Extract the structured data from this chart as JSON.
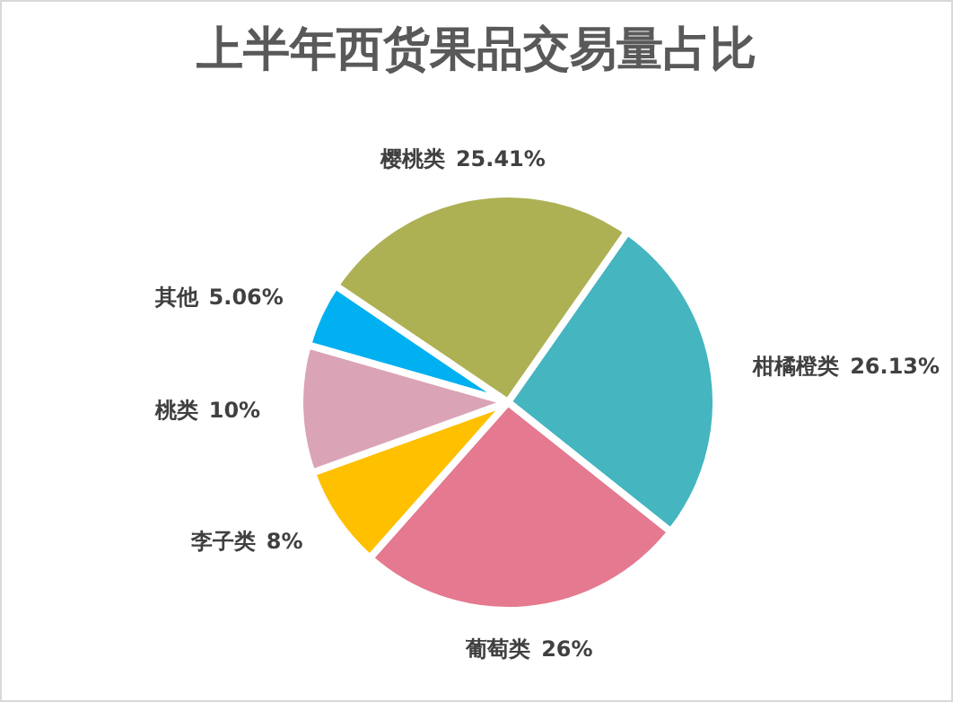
{
  "chart_data": {
    "type": "pie",
    "title": "上半年西货果品交易量占比",
    "categories": [
      "柑橘橙类",
      "葡萄类",
      "李子类",
      "桃类",
      "其他",
      "樱桃类"
    ],
    "values": [
      26.13,
      26,
      8,
      10,
      5.06,
      25.41
    ],
    "colors": [
      "#45b5c0",
      "#e5798f",
      "#ffc000",
      "#dba3b6",
      "#00b0f0",
      "#adb154"
    ],
    "value_labels": [
      "26.13%",
      "26%",
      "8%",
      "10%",
      "5.06%",
      "25.41%"
    ],
    "legend": false
  }
}
